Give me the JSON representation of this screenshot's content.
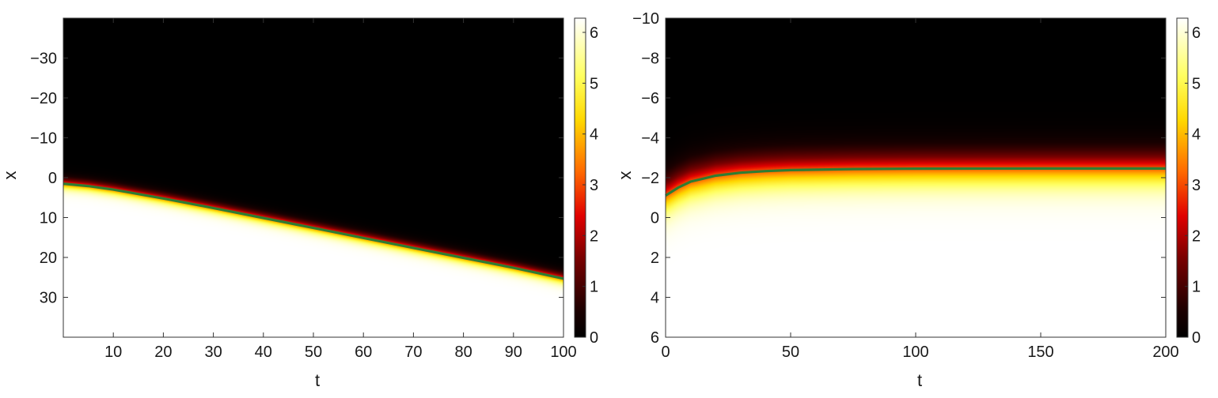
{
  "chart_data": [
    {
      "type": "heatmap",
      "title": "",
      "xlabel": "t",
      "ylabel": "x",
      "xlim": [
        0,
        100
      ],
      "ylim": [
        40,
        -40
      ],
      "x_inverted": false,
      "y_axis_direction": "increasing downward",
      "x_ticks": [
        10,
        20,
        30,
        40,
        50,
        60,
        70,
        80,
        90,
        100
      ],
      "y_ticks": [
        -30,
        -20,
        -10,
        0,
        10,
        20,
        30
      ],
      "colorbar": {
        "range": [
          0,
          6.28
        ],
        "ticks": [
          0,
          1,
          2,
          3,
          4,
          5,
          6
        ],
        "colormap": "black-red-yellow-white"
      },
      "field": "tanh-like front from 0 above the curve to 6.28 below it, sharp transition",
      "front_curve": {
        "color": "#2e7d32",
        "t": [
          0,
          5,
          10,
          20,
          30,
          40,
          50,
          60,
          70,
          80,
          90,
          100
        ],
        "x": [
          1.5,
          2.1,
          3.0,
          5.2,
          7.6,
          10.1,
          12.6,
          15.1,
          17.6,
          20.1,
          22.6,
          25.3
        ]
      }
    },
    {
      "type": "heatmap",
      "title": "",
      "xlabel": "t",
      "ylabel": "x",
      "xlim": [
        0,
        200
      ],
      "ylim": [
        6,
        -10
      ],
      "y_axis_direction": "increasing downward",
      "x_ticks": [
        0,
        50,
        100,
        150,
        200
      ],
      "y_ticks": [
        -10,
        -8,
        -6,
        -4,
        -2,
        0,
        2,
        4,
        6
      ],
      "colorbar": {
        "range": [
          0,
          6.28
        ],
        "ticks": [
          0,
          1,
          2,
          3,
          4,
          5,
          6
        ],
        "colormap": "black-red-yellow-white"
      },
      "field": "broad front from 0 above the curve to 6.28 below it, wide transition",
      "front_curve": {
        "color": "#2e7d32",
        "t": [
          0,
          5,
          10,
          20,
          30,
          40,
          50,
          75,
          100,
          150,
          200
        ],
        "x": [
          -1.1,
          -1.5,
          -1.8,
          -2.1,
          -2.25,
          -2.33,
          -2.38,
          -2.43,
          -2.45,
          -2.46,
          -2.46
        ]
      }
    }
  ]
}
